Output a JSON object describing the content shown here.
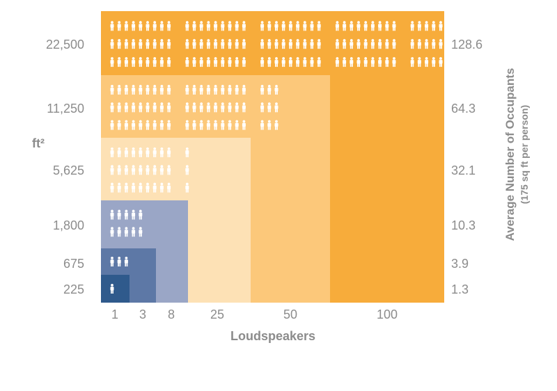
{
  "chart_data": {
    "type": "nested-area",
    "xlabel": "Loudspeakers",
    "ylabel_left": "ft²",
    "ylabel_right": "Average Number of Occupants",
    "ylabel_right_sub": "(175 sq ft per person)",
    "tiers": [
      {
        "loudspeakers": "1",
        "area_ft2": "225",
        "occupants": "1.3",
        "color": "#2f5a8c"
      },
      {
        "loudspeakers": "3",
        "area_ft2": "675",
        "occupants": "3.9",
        "color": "#5d78a6"
      },
      {
        "loudspeakers": "8",
        "area_ft2": "1,800",
        "occupants": "10.3",
        "color": "#9aa6c6"
      },
      {
        "loudspeakers": "25",
        "area_ft2": "5,625",
        "occupants": "32.1",
        "color": "#fde1b5"
      },
      {
        "loudspeakers": "50",
        "area_ft2": "11,250",
        "occupants": "64.3",
        "color": "#fcc87a"
      },
      {
        "loudspeakers": "100",
        "area_ft2": "22,500",
        "occupants": "128.6",
        "color": "#f7ac3b"
      }
    ]
  }
}
